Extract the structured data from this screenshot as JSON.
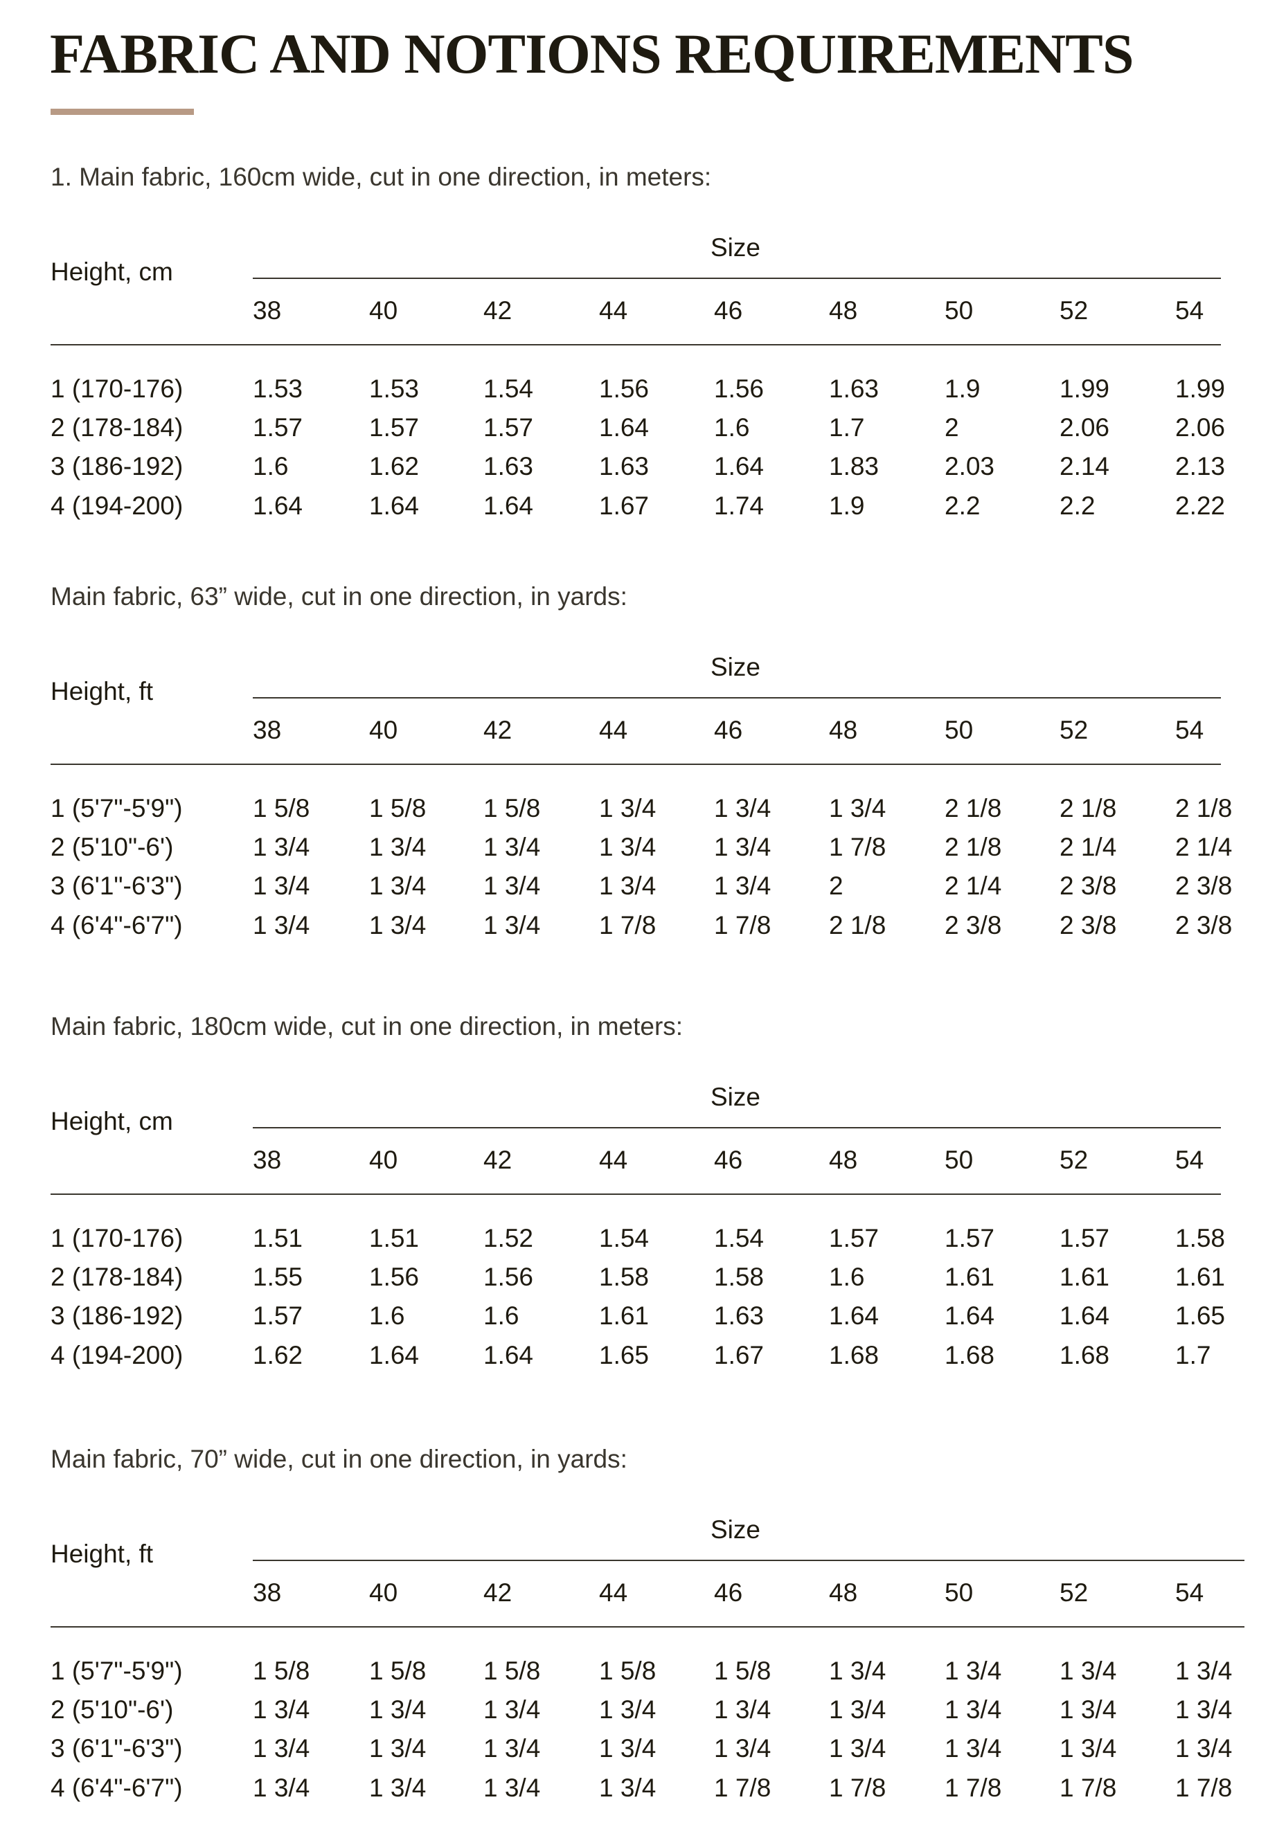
{
  "title": "FABRIC AND NOTIONS REQUIREMENTS",
  "colors": {
    "accent": "#b89a85",
    "text": "#1e1a10"
  },
  "tables": [
    {
      "caption": "1. Main fabric, 160cm wide, cut in one direction, in meters:",
      "row_header": "Height, cm",
      "size_header": "Size",
      "sizes": [
        "38",
        "40",
        "42",
        "44",
        "46",
        "48",
        "50",
        "52",
        "54"
      ],
      "rows": [
        {
          "label": "1 (170-176)",
          "values": [
            "1.53",
            "1.53",
            "1.54",
            "1.56",
            "1.56",
            "1.63",
            "1.9",
            "1.99",
            "1.99"
          ]
        },
        {
          "label": "2 (178-184)",
          "values": [
            "1.57",
            "1.57",
            "1.57",
            "1.64",
            "1.6",
            "1.7",
            "2",
            "2.06",
            "2.06"
          ]
        },
        {
          "label": "3 (186-192)",
          "values": [
            "1.6",
            "1.62",
            "1.63",
            "1.63",
            "1.64",
            "1.83",
            "2.03",
            "2.14",
            "2.13"
          ]
        },
        {
          "label": "4 (194-200)",
          "values": [
            "1.64",
            "1.64",
            "1.64",
            "1.67",
            "1.74",
            "1.9",
            "2.2",
            "2.2",
            "2.22"
          ]
        }
      ]
    },
    {
      "caption": "Main fabric, 63” wide, cut in one direction, in yards:",
      "row_header": "Height, ft",
      "size_header": "Size",
      "sizes": [
        "38",
        "40",
        "42",
        "44",
        "46",
        "48",
        "50",
        "52",
        "54"
      ],
      "rows": [
        {
          "label": "1 (5'7\"-5'9\")",
          "values": [
            "1 5/8",
            "1 5/8",
            "1 5/8",
            "1 3/4",
            "1 3/4",
            "1 3/4",
            "2 1/8",
            "2 1/8",
            "2 1/8"
          ]
        },
        {
          "label": "2 (5'10\"-6')",
          "values": [
            "1 3/4",
            "1 3/4",
            "1 3/4",
            "1 3/4",
            "1 3/4",
            "1 7/8",
            "2 1/8",
            "2 1/4",
            "2 1/4"
          ]
        },
        {
          "label": "3 (6'1\"-6'3\")",
          "values": [
            "1 3/4",
            "1 3/4",
            "1 3/4",
            "1 3/4",
            "1 3/4",
            "2",
            "2 1/4",
            "2 3/8",
            "2 3/8"
          ]
        },
        {
          "label": "4 (6'4\"-6'7\")",
          "values": [
            "1 3/4",
            "1 3/4",
            "1 3/4",
            "1 7/8",
            "1 7/8",
            "2 1/8",
            "2 3/8",
            "2 3/8",
            "2 3/8"
          ]
        }
      ]
    },
    {
      "caption": "Main fabric, 180cm wide, cut in one direction, in meters:",
      "row_header": "Height, cm",
      "size_header": "Size",
      "sizes": [
        "38",
        "40",
        "42",
        "44",
        "46",
        "48",
        "50",
        "52",
        "54"
      ],
      "rows": [
        {
          "label": "1 (170-176)",
          "values": [
            "1.51",
            "1.51",
            "1.52",
            "1.54",
            "1.54",
            "1.57",
            "1.57",
            "1.57",
            "1.58"
          ]
        },
        {
          "label": "2 (178-184)",
          "values": [
            "1.55",
            "1.56",
            "1.56",
            "1.58",
            "1.58",
            "1.6",
            "1.61",
            "1.61",
            "1.61"
          ]
        },
        {
          "label": "3 (186-192)",
          "values": [
            "1.57",
            "1.6",
            "1.6",
            "1.61",
            "1.63",
            "1.64",
            "1.64",
            "1.64",
            "1.65"
          ]
        },
        {
          "label": "4 (194-200)",
          "values": [
            "1.62",
            "1.64",
            "1.64",
            "1.65",
            "1.67",
            "1.68",
            "1.68",
            "1.68",
            "1.7"
          ]
        }
      ]
    },
    {
      "caption": "Main fabric, 70” wide, cut in one direction, in yards:",
      "row_header": "Height, ft",
      "size_header": "Size",
      "sizes": [
        "38",
        "40",
        "42",
        "44",
        "46",
        "48",
        "50",
        "52",
        "54"
      ],
      "rows": [
        {
          "label": "1 (5'7\"-5'9\")",
          "values": [
            "1 5/8",
            "1 5/8",
            "1 5/8",
            "1 5/8",
            "1 5/8",
            "1 3/4",
            "1 3/4",
            "1 3/4",
            "1 3/4"
          ]
        },
        {
          "label": "2 (5'10\"-6')",
          "values": [
            "1 3/4",
            "1 3/4",
            "1 3/4",
            "1 3/4",
            "1 3/4",
            "1 3/4",
            "1 3/4",
            "1 3/4",
            "1 3/4"
          ]
        },
        {
          "label": "3 (6'1\"-6'3\")",
          "values": [
            "1 3/4",
            "1 3/4",
            "1 3/4",
            "1 3/4",
            "1 3/4",
            "1 3/4",
            "1 3/4",
            "1 3/4",
            "1 3/4"
          ]
        },
        {
          "label": "4 (6'4\"-6'7\")",
          "values": [
            "1 3/4",
            "1 3/4",
            "1 3/4",
            "1 3/4",
            "1 7/8",
            "1 7/8",
            "1 7/8",
            "1 7/8",
            "1 7/8"
          ]
        }
      ]
    }
  ]
}
